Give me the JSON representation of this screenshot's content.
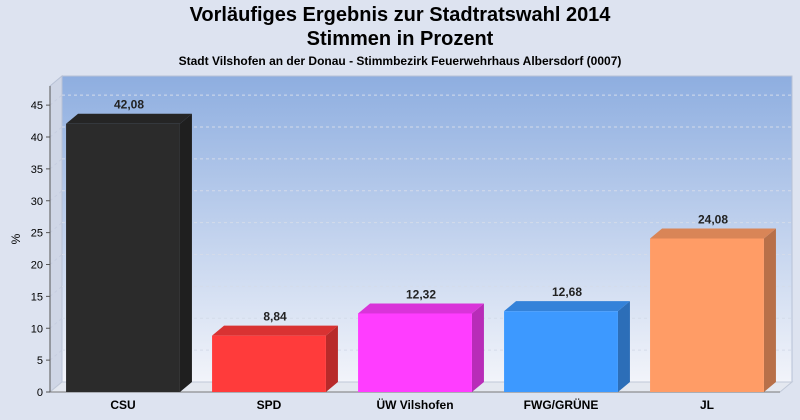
{
  "chart_data": {
    "type": "bar",
    "title": "Vorläufiges Ergebnis zur Stadtratswahl 2014",
    "title_line2": "Stimmen in Prozent",
    "subtitle": "Stadt Vilshofen an der Donau - Stimmbezirk  Feuerwehrhaus Albersdorf (0007)",
    "ylabel": "%",
    "xlabel": "",
    "ylim": [
      0,
      48
    ],
    "yticks": [
      0,
      5,
      10,
      15,
      20,
      25,
      30,
      35,
      40,
      45
    ],
    "grid": true,
    "categories": [
      "CSU",
      "SPD",
      "ÜW Vilshofen",
      "FWG/GRÜNE",
      "JL"
    ],
    "values": [
      42.08,
      8.84,
      12.32,
      12.68,
      24.08
    ],
    "value_labels": [
      "42,08",
      "8,84",
      "12,32",
      "12,68",
      "24,08"
    ],
    "colors": [
      "#2b2b2b",
      "#ff3b3b",
      "#ff3dff",
      "#3d99ff",
      "#ff9c66"
    ]
  }
}
